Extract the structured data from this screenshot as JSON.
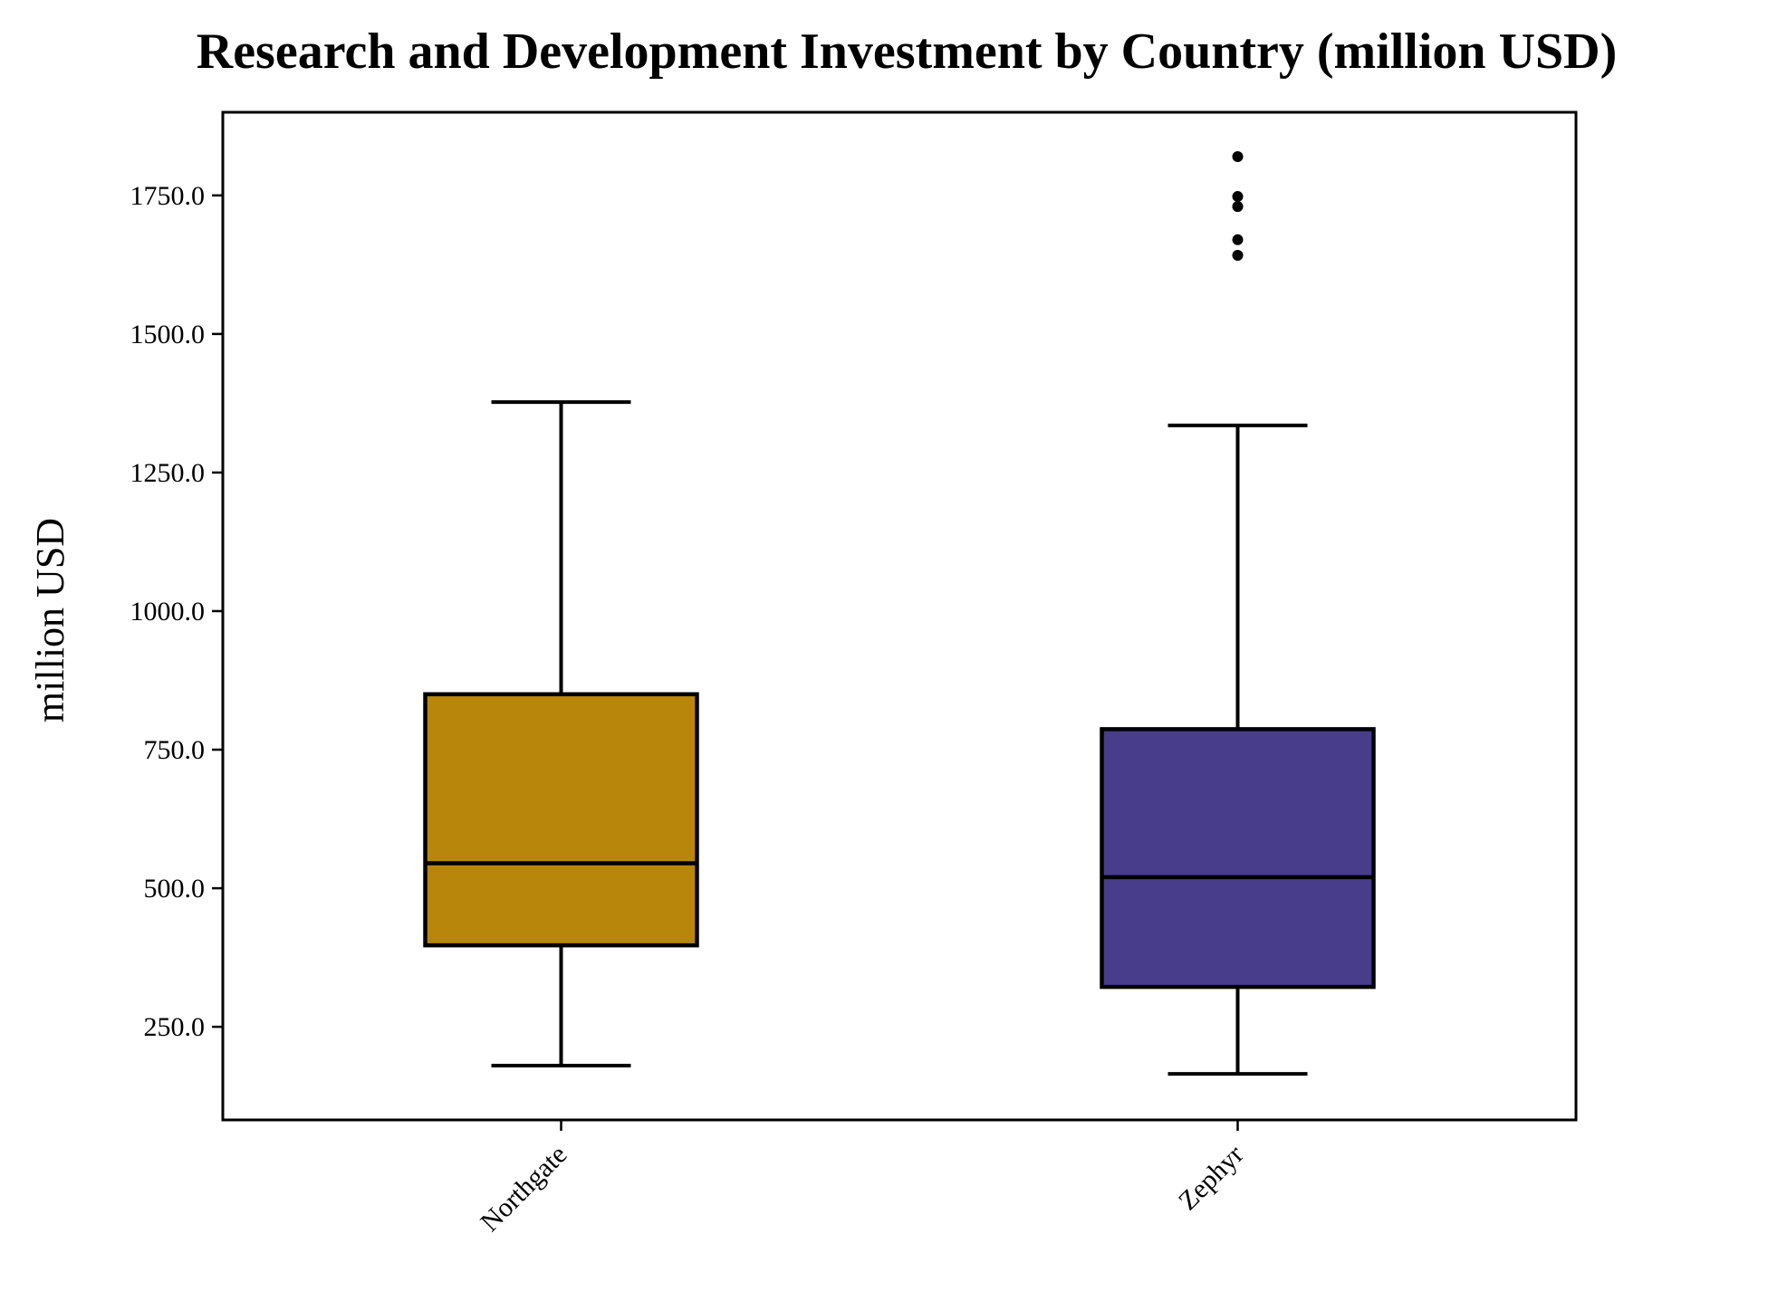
{
  "chart_data": {
    "type": "box",
    "title": "Research and Development Investment by Country (million USD)",
    "xlabel": "",
    "ylabel": "million USD",
    "ylim": [
      82,
      1900
    ],
    "yticks": [
      250,
      500,
      750,
      1000,
      1250,
      1500,
      1750
    ],
    "ytick_labels": [
      "250.0",
      "500.0",
      "750.0",
      "1000.0",
      "1250.0",
      "1500.0",
      "1750.0"
    ],
    "grid": false,
    "categories": [
      "Northgate",
      "Zephyr"
    ],
    "series": [
      {
        "category": "Northgate",
        "color": "#b8860b",
        "whisker_low": 180,
        "q1": 397,
        "median": 545,
        "q3": 850,
        "whisker_high": 1377,
        "outliers": []
      },
      {
        "category": "Zephyr",
        "color": "#483d8b",
        "whisker_low": 165,
        "q1": 322,
        "median": 520,
        "q3": 787,
        "whisker_high": 1335,
        "outliers": [
          1642,
          1670,
          1730,
          1748,
          1820
        ]
      }
    ]
  }
}
